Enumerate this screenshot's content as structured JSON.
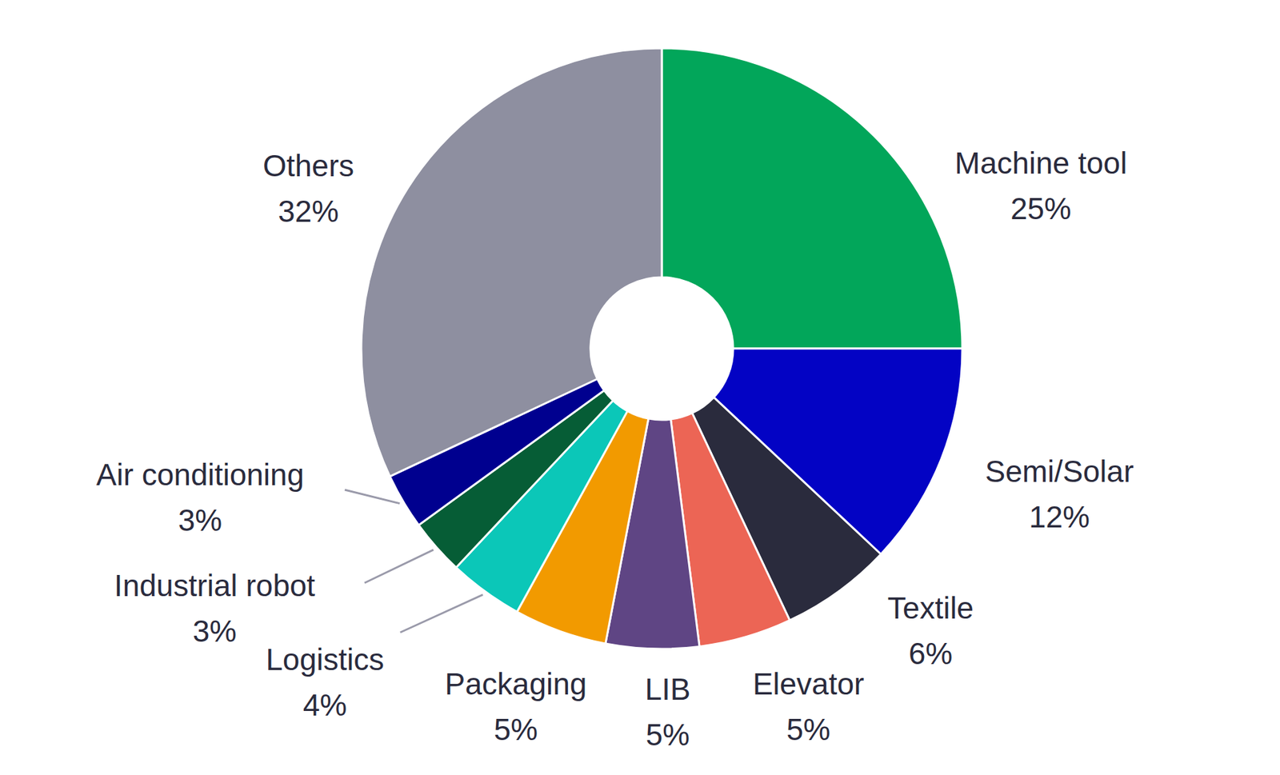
{
  "chart_data": {
    "type": "pie",
    "categories": [
      "Machine tool",
      "Semi/Solar",
      "Textile",
      "Elevator",
      "LIB",
      "Packaging",
      "Logistics",
      "Industrial robot",
      "Air conditioning",
      "Others"
    ],
    "values": [
      25,
      12,
      6,
      5,
      5,
      5,
      4,
      3,
      3,
      32
    ],
    "value_labels": [
      "25%",
      "12%",
      "6%",
      "5%",
      "5%",
      "5%",
      "4%",
      "3%",
      "3%",
      "32%"
    ],
    "colors": [
      "#02a65a",
      "#0303c4",
      "#2a2b3d",
      "#ec6555",
      "#5f4584",
      "#f29a00",
      "#0bc7b8",
      "#065d36",
      "#00008f",
      "#8e8fa0"
    ],
    "data_labels": true
  }
}
